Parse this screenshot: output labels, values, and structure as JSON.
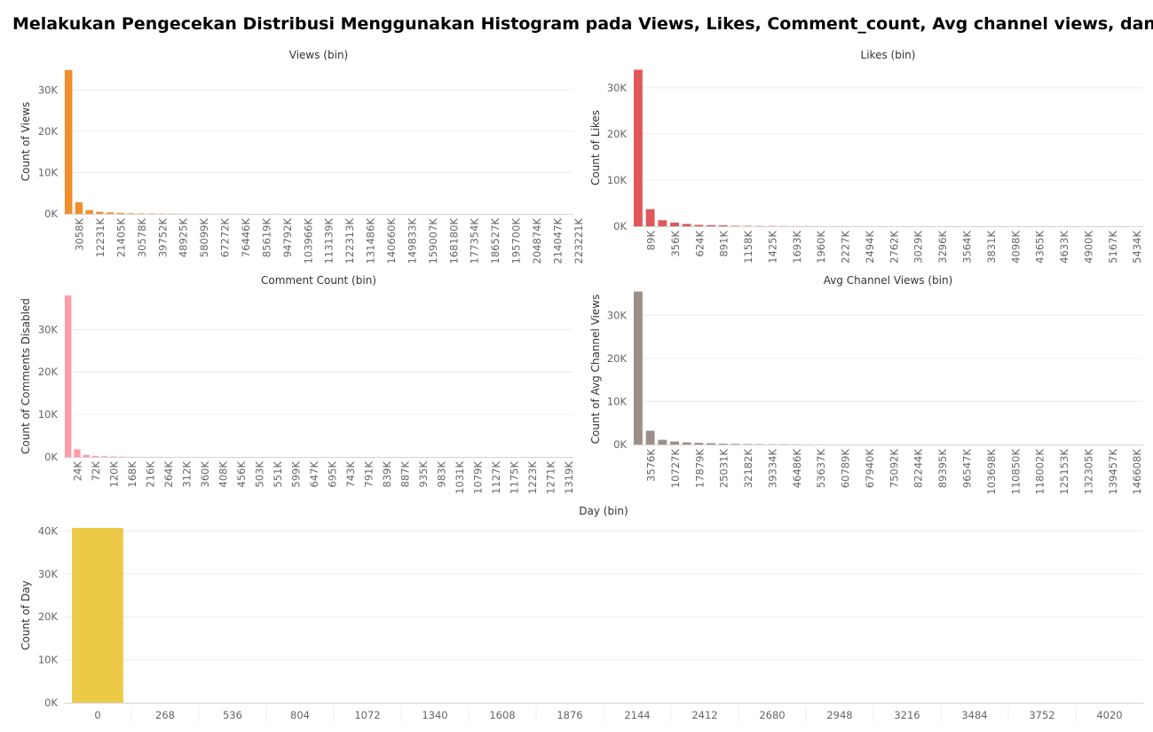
{
  "page": {
    "title": "Melakukan Pengecekan Distribusi Menggunakan Histogram pada Views, Likes, Comment_count, Avg channel views, dan Day"
  },
  "chart_data": [
    {
      "id": "views",
      "type": "bar",
      "title": "Views (bin)",
      "ylabel": "Count of Views",
      "color": "#f28e2b",
      "ylim": [
        0,
        35000
      ],
      "yticks": [
        0,
        10000,
        20000,
        30000
      ],
      "ytick_labels": [
        "0K",
        "10K",
        "20K",
        "30K"
      ],
      "xtick_labels": [
        "3058K",
        "12231K",
        "21405K",
        "30578K",
        "39752K",
        "48925K",
        "58099K",
        "67272K",
        "76446K",
        "85619K",
        "94792K",
        "103966K",
        "113139K",
        "122313K",
        "131486K",
        "140660K",
        "149833K",
        "159007K",
        "168180K",
        "177354K",
        "186527K",
        "195700K",
        "204874K",
        "214047K",
        "223221K"
      ],
      "x_label_start": 1,
      "bin_count": 49,
      "values": [
        34800,
        2800,
        900,
        500,
        350,
        250,
        150,
        100,
        80,
        60,
        50,
        40,
        30,
        30,
        20,
        20,
        15,
        15,
        10,
        10,
        10,
        10,
        8,
        8,
        6,
        6,
        5,
        5,
        4,
        4,
        4,
        3,
        3,
        3,
        2,
        2,
        2,
        2,
        2,
        1,
        1,
        1,
        1,
        1,
        1,
        1,
        1,
        1,
        1
      ]
    },
    {
      "id": "likes",
      "type": "bar",
      "title": "Likes (bin)",
      "ylabel": "Count of Likes",
      "color": "#e15759",
      "ylim": [
        0,
        34000
      ],
      "yticks": [
        0,
        10000,
        20000,
        30000
      ],
      "ytick_labels": [
        "0K",
        "10K",
        "20K",
        "30K"
      ],
      "xtick_labels": [
        "89K",
        "356K",
        "624K",
        "891K",
        "1158K",
        "1425K",
        "1693K",
        "1960K",
        "2227K",
        "2494K",
        "2762K",
        "3029K",
        "3296K",
        "3564K",
        "3831K",
        "4098K",
        "4365K",
        "4633K",
        "4900K",
        "5167K",
        "5434K"
      ],
      "x_label_start": 1,
      "bin_count": 42,
      "values": [
        33900,
        3700,
        1300,
        800,
        500,
        300,
        250,
        200,
        100,
        80,
        60,
        50,
        40,
        30,
        25,
        20,
        15,
        12,
        10,
        8,
        6,
        5,
        4,
        4,
        3,
        3,
        2,
        2,
        2,
        2,
        1,
        1,
        1,
        1,
        1,
        1,
        1,
        1,
        1,
        1,
        1,
        1
      ]
    },
    {
      "id": "comment-count",
      "type": "bar",
      "title": "Comment Count (bin)",
      "ylabel": "Count of Comments Disabled",
      "color": "#ff9da7",
      "ylim": [
        0,
        38000
      ],
      "yticks": [
        0,
        10000,
        20000,
        30000
      ],
      "ytick_labels": [
        "0K",
        "10K",
        "20K",
        "30K"
      ],
      "xtick_labels": [
        "24K",
        "72K",
        "120K",
        "168K",
        "216K",
        "264K",
        "312K",
        "360K",
        "408K",
        "456K",
        "503K",
        "551K",
        "599K",
        "647K",
        "695K",
        "743K",
        "791K",
        "839K",
        "887K",
        "935K",
        "983K",
        "1031K",
        "1079K",
        "1127K",
        "1175K",
        "1223K",
        "1271K",
        "1319K"
      ],
      "x_label_start": 1,
      "bin_count": 56,
      "values": [
        38000,
        1800,
        500,
        250,
        150,
        100,
        60,
        40,
        30,
        25,
        20,
        15,
        10,
        8,
        6,
        5,
        4,
        3,
        3,
        2,
        2,
        2,
        2,
        1,
        1,
        1,
        1,
        1,
        1,
        1,
        1,
        1,
        1,
        1,
        1,
        1,
        1,
        1,
        1,
        1,
        1,
        1,
        1,
        1,
        1,
        1,
        1,
        1,
        1,
        1,
        1,
        1,
        1,
        1,
        1,
        1
      ]
    },
    {
      "id": "avg-channel-views",
      "type": "bar",
      "title": "Avg Channel Views (bin)",
      "ylabel": "Count of Avg Channel Views",
      "color": "#9c8f8a",
      "ylim": [
        0,
        35000
      ],
      "yticks": [
        0,
        10000,
        20000,
        30000
      ],
      "ytick_labels": [
        "0K",
        "10K",
        "20K",
        "30K"
      ],
      "xtick_labels": [
        "3576K",
        "10727K",
        "17879K",
        "25031K",
        "32182K",
        "39334K",
        "46486K",
        "53637K",
        "60789K",
        "67940K",
        "75092K",
        "82244K",
        "89395K",
        "96547K",
        "103698K",
        "110850K",
        "118002K",
        "125153K",
        "132305K",
        "139457K",
        "146608K"
      ],
      "x_label_start": 1,
      "bin_count": 42,
      "values": [
        35500,
        3200,
        1100,
        700,
        500,
        400,
        300,
        200,
        150,
        100,
        80,
        60,
        50,
        40,
        30,
        20,
        15,
        10,
        8,
        6,
        5,
        4,
        3,
        3,
        2,
        2,
        2,
        1,
        1,
        1,
        1,
        1,
        1,
        1,
        1,
        1,
        1,
        1,
        1,
        1,
        1,
        1
      ]
    },
    {
      "id": "day",
      "type": "bar",
      "title": "Day (bin)",
      "ylabel": "Count of Day",
      "color": "#edc948",
      "ylim": [
        0,
        40700
      ],
      "yticks": [
        0,
        10000,
        20000,
        30000,
        40000
      ],
      "ytick_labels": [
        "0K",
        "10K",
        "20K",
        "30K",
        "40K"
      ],
      "xtick_labels": [
        "0",
        "268",
        "536",
        "804",
        "1072",
        "1340",
        "1608",
        "1876",
        "2144",
        "2412",
        "2680",
        "2948",
        "3216",
        "3484",
        "3752",
        "4020"
      ],
      "x_label_start": 0,
      "bin_count": 16,
      "values": [
        40700,
        0,
        0,
        0,
        0,
        0,
        0,
        0,
        0,
        0,
        0,
        0,
        0,
        0,
        0,
        0
      ]
    }
  ]
}
